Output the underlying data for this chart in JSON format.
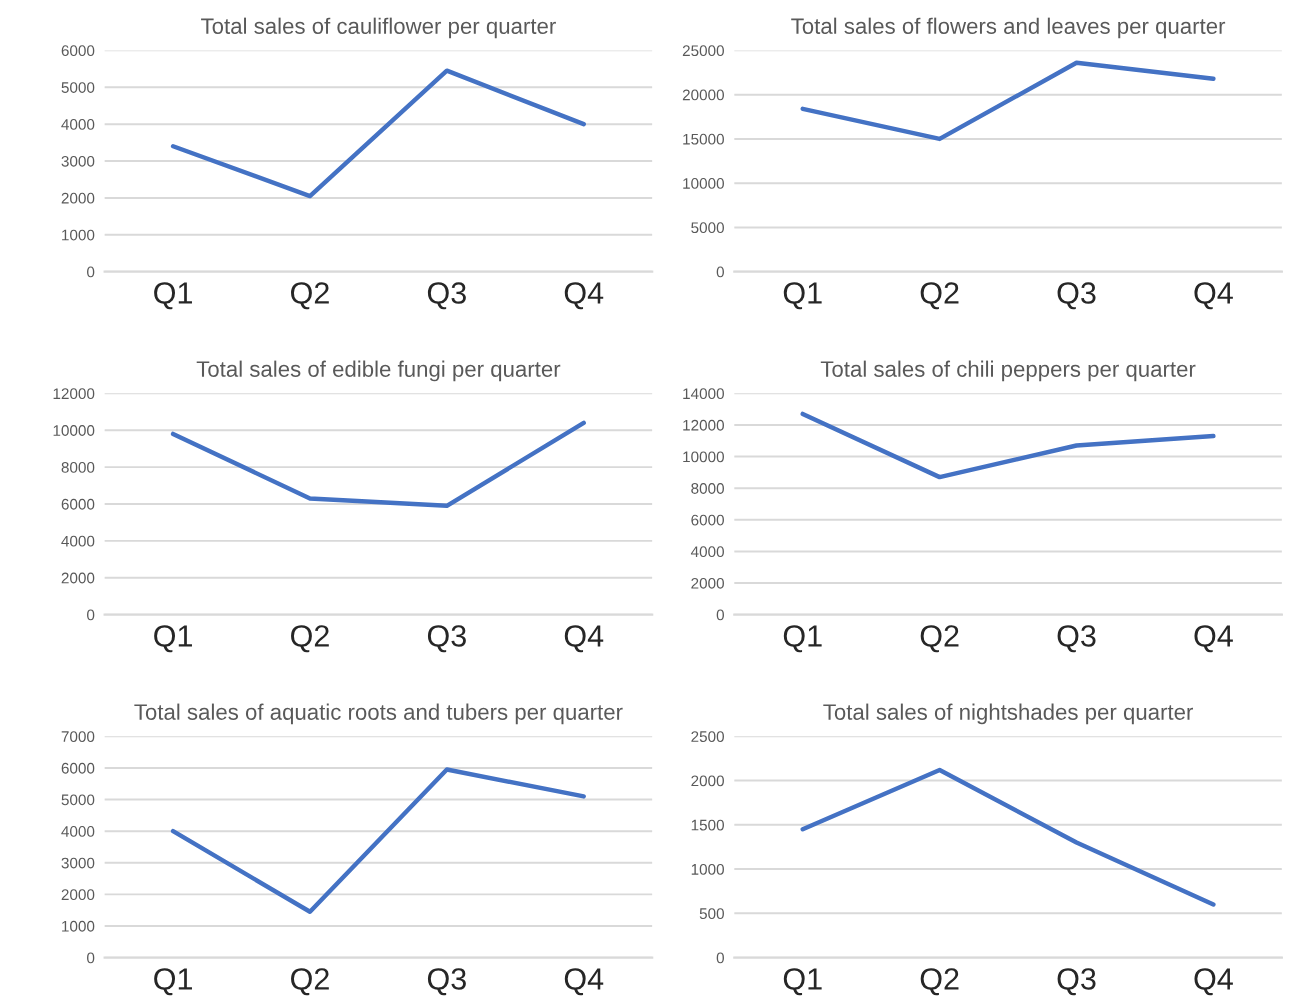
{
  "chart_data": [
    {
      "type": "line",
      "title": "Total sales of cauliflower per quarter",
      "categories": [
        "Q1",
        "Q2",
        "Q3",
        "Q4"
      ],
      "values": [
        3400,
        2050,
        5450,
        4000
      ],
      "color": "#4472c4",
      "ylim": [
        0,
        6000
      ],
      "yticks": [
        0,
        1000,
        2000,
        3000,
        4000,
        5000,
        6000
      ],
      "grid": "y"
    },
    {
      "type": "line",
      "title": "Total sales of flowers and leaves per quarter",
      "categories": [
        "Q1",
        "Q2",
        "Q3",
        "Q4"
      ],
      "values": [
        18400,
        15000,
        23600,
        21800
      ],
      "color": "#4472c4",
      "ylim": [
        0,
        25000
      ],
      "yticks": [
        0,
        5000,
        10000,
        15000,
        20000,
        25000
      ],
      "grid": "y"
    },
    {
      "type": "line",
      "title": "Total sales of edible fungi per quarter",
      "categories": [
        "Q1",
        "Q2",
        "Q3",
        "Q4"
      ],
      "values": [
        9800,
        6300,
        5900,
        10400
      ],
      "color": "#4472c4",
      "ylim": [
        0,
        12000
      ],
      "yticks": [
        0,
        2000,
        4000,
        6000,
        8000,
        10000,
        12000
      ],
      "grid": "y"
    },
    {
      "type": "line",
      "title": "Total sales of chili peppers per quarter",
      "categories": [
        "Q1",
        "Q2",
        "Q3",
        "Q4"
      ],
      "values": [
        12700,
        8700,
        10700,
        11300
      ],
      "color": "#4472c4",
      "ylim": [
        0,
        14000
      ],
      "yticks": [
        0,
        2000,
        4000,
        6000,
        8000,
        10000,
        12000,
        14000
      ],
      "grid": "y"
    },
    {
      "type": "line",
      "title": "Total sales of aquatic roots and tubers per quarter",
      "categories": [
        "Q1",
        "Q2",
        "Q3",
        "Q4"
      ],
      "values": [
        4000,
        1450,
        5950,
        5100
      ],
      "color": "#4472c4",
      "ylim": [
        0,
        7000
      ],
      "yticks": [
        0,
        1000,
        2000,
        3000,
        4000,
        5000,
        6000,
        7000
      ],
      "grid": "y"
    },
    {
      "type": "line",
      "title": "Total sales of nightshades per quarter",
      "categories": [
        "Q1",
        "Q2",
        "Q3",
        "Q4"
      ],
      "values": [
        1450,
        2120,
        1300,
        600
      ],
      "color": "#4472c4",
      "ylim": [
        0,
        2500
      ],
      "yticks": [
        0,
        500,
        1000,
        1500,
        2000,
        2500
      ],
      "grid": "y"
    }
  ]
}
